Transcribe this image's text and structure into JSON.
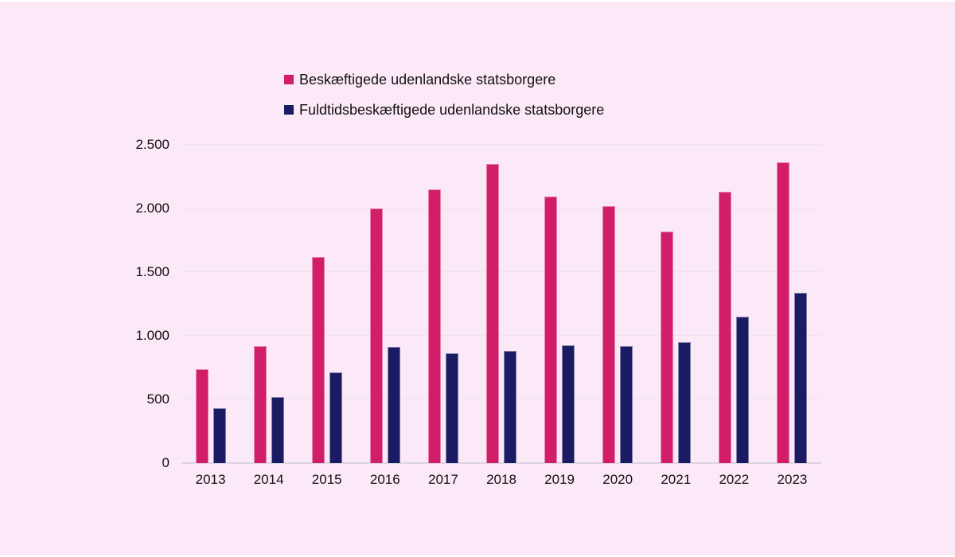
{
  "page": {
    "background_color": "#fce9f7",
    "text_color": "#111111"
  },
  "chart_data": {
    "type": "bar",
    "title": "",
    "xlabel": "",
    "ylabel": "",
    "categories": [
      "2013",
      "2014",
      "2015",
      "2016",
      "2017",
      "2018",
      "2019",
      "2020",
      "2021",
      "2022",
      "2023"
    ],
    "series": [
      {
        "name": "Beskæftigede udenlandske statsborgere",
        "slug": "beskaeftigede",
        "color": "#d21e68",
        "values": [
          740,
          920,
          1620,
          2000,
          2150,
          2350,
          2095,
          2020,
          1820,
          2130,
          2365
        ]
      },
      {
        "name": "Fuldtidsbeskæftigede udenlandske statsborgere",
        "slug": "fuldtidsbeskaeftigede",
        "color": "#1a1b62",
        "values": [
          430,
          520,
          715,
          910,
          860,
          880,
          925,
          920,
          950,
          1150,
          1335
        ]
      }
    ],
    "ylim": [
      0,
      2500
    ],
    "ytick_values": [
      0,
      500,
      1000,
      1500,
      2000,
      2500
    ],
    "ytick_labels": [
      "0",
      "500",
      "1.000",
      "1.500",
      "2.000",
      "2.500"
    ],
    "grid": true,
    "legend_position": "top",
    "gridline_color": "#eee1ee",
    "axis_line_color": "#dcd4e2"
  }
}
